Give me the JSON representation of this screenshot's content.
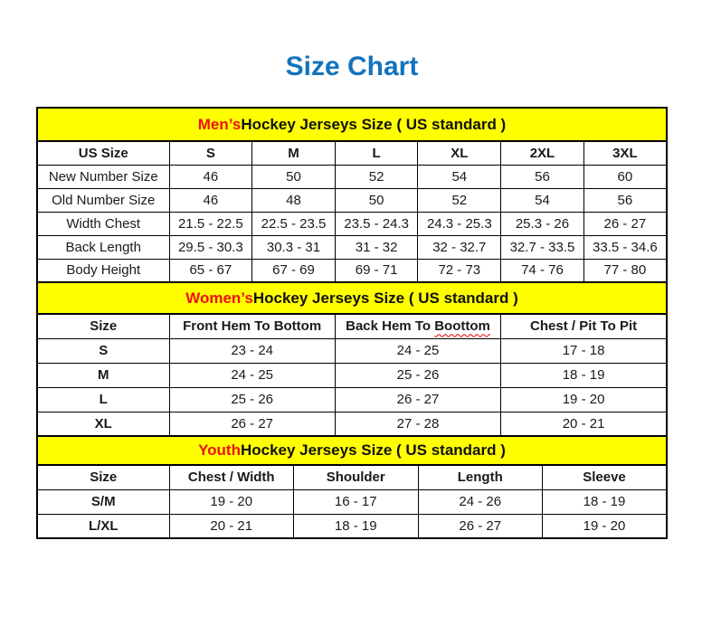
{
  "page": {
    "title": "Size Chart"
  },
  "colors": {
    "title_blue": "#1273bd",
    "section_highlight_red": "#ee1010",
    "band_yellow": "#ffff00",
    "border_black": "#000000"
  },
  "sections": [
    {
      "id": "men",
      "heading_highlight": "Men’s",
      "heading_rest": " Hockey Jerseys Size ( US standard )",
      "header_row": [
        "US Size",
        "S",
        "M",
        "L",
        "XL",
        "2XL",
        "3XL"
      ],
      "rows": [
        [
          "New Number Size",
          "46",
          "50",
          "52",
          "54",
          "56",
          "60"
        ],
        [
          "Old Number Size",
          "46",
          "48",
          "50",
          "52",
          "54",
          "56"
        ],
        [
          "Width Chest",
          "21.5 - 22.5",
          "22.5 - 23.5",
          "23.5 - 24.3",
          "24.3 - 25.3",
          "25.3 - 26",
          "26 - 27"
        ],
        [
          "Back Length",
          "29.5 - 30.3",
          "30.3 - 31",
          "31 - 32",
          "32 - 32.7",
          "32.7 - 33.5",
          "33.5 - 34.6"
        ],
        [
          "Body Height",
          "65 - 67",
          "67 - 69",
          "69 - 71",
          "72 - 73",
          "74 - 76",
          "77 - 80"
        ]
      ]
    },
    {
      "id": "women",
      "heading_highlight": "Women’s",
      "heading_rest": " Hockey Jerseys Size ( US standard )",
      "spellcheck_word": "Boottom",
      "header_row": [
        "Size",
        "Front Hem To Bottom",
        "Back Hem To Boottom",
        "Chest / Pit To Pit"
      ],
      "rows": [
        [
          "S",
          "23 - 24",
          "24 - 25",
          "17 - 18"
        ],
        [
          "M",
          "24 - 25",
          "25 - 26",
          "18 - 19"
        ],
        [
          "L",
          "25 - 26",
          "26 - 27",
          "19 - 20"
        ],
        [
          "XL",
          "26 - 27",
          "27 - 28",
          "20 - 21"
        ]
      ]
    },
    {
      "id": "youth",
      "heading_highlight": "Youth",
      "heading_rest": " Hockey Jerseys Size ( US standard )",
      "header_row": [
        "Size",
        "Chest / Width",
        "Shoulder",
        "Length",
        "Sleeve"
      ],
      "rows": [
        [
          "S/M",
          "19 - 20",
          "16 - 17",
          "24 - 26",
          "18 - 19"
        ],
        [
          "L/XL",
          "20 - 21",
          "18 - 19",
          "26 - 27",
          "19 - 20"
        ]
      ]
    }
  ]
}
